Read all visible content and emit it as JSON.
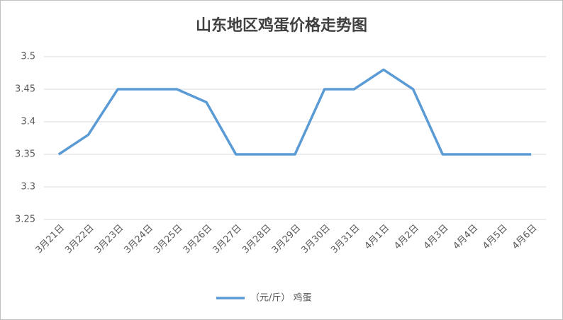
{
  "chart_data": {
    "type": "line",
    "title": "山东地区鸡蛋价格走势图",
    "categories": [
      "3月21日",
      "3月22日",
      "3月23日",
      "3月24日",
      "3月25日",
      "3月26日",
      "3月27日",
      "3月28日",
      "3月29日",
      "3月30日",
      "3月31日",
      "4月1日",
      "4月2日",
      "4月3日",
      "4月4日",
      "4月5日",
      "4月6日"
    ],
    "series": [
      {
        "name": "（元/斤） 鸡蛋",
        "color": "#5b9bd5",
        "values": [
          3.35,
          3.38,
          3.45,
          3.45,
          3.45,
          3.43,
          3.35,
          3.35,
          3.35,
          3.45,
          3.45,
          3.48,
          3.45,
          3.35,
          3.35,
          3.35,
          3.35
        ]
      }
    ],
    "ylim": [
      3.25,
      3.5
    ],
    "yticks": [
      3.25,
      3.3,
      3.35,
      3.4,
      3.45,
      3.5
    ],
    "grid": true,
    "legend": "bottom"
  }
}
